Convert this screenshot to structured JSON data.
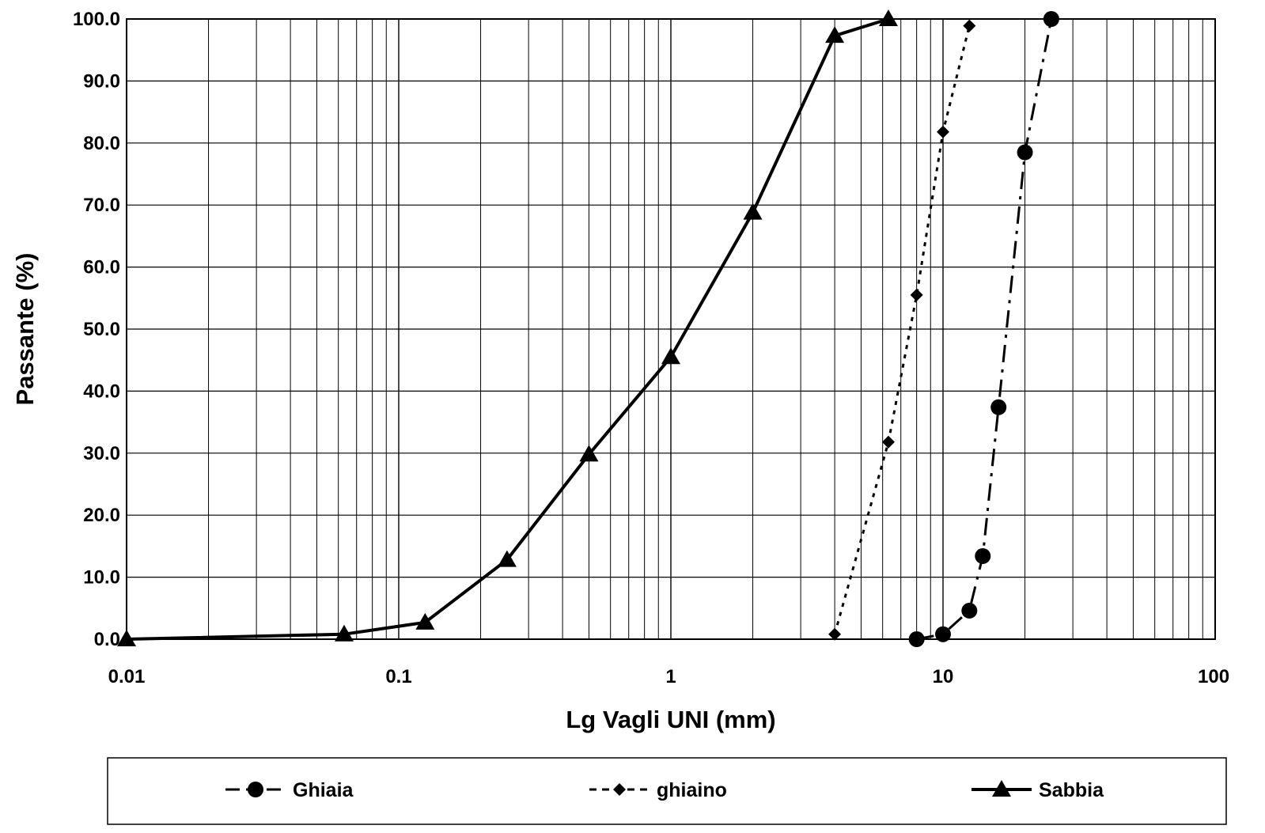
{
  "chart_data": {
    "type": "line",
    "title": "",
    "xlabel": "Lg Vagli UNI (mm)",
    "ylabel": "Passante (%)",
    "x_scale": "log",
    "xlim": [
      0.01,
      100
    ],
    "ylim": [
      0,
      100
    ],
    "x_ticks": [
      0.01,
      0.1,
      1,
      10,
      100
    ],
    "x_tick_labels": [
      "0.01",
      "0.1",
      "1",
      "10",
      "100"
    ],
    "y_ticks": [
      0,
      10,
      20,
      30,
      40,
      50,
      60,
      70,
      80,
      90,
      100
    ],
    "y_tick_labels": [
      "0.0",
      "10.0",
      "20.0",
      "30.0",
      "40.0",
      "50.0",
      "60.0",
      "70.0",
      "80.0",
      "90.0",
      "100.0"
    ],
    "grid": true,
    "legend_position": "bottom",
    "series": [
      {
        "name": "Ghiaia",
        "marker": "circle",
        "line_style": "dash-dot",
        "color": "#000000",
        "x": [
          8,
          10,
          12.5,
          14,
          16,
          20,
          25
        ],
        "y": [
          0.0,
          0.8,
          4.6,
          13.4,
          37.4,
          78.5,
          100.0
        ]
      },
      {
        "name": "ghiaino",
        "marker": "diamond",
        "line_style": "dotted",
        "color": "#000000",
        "x": [
          4,
          6.3,
          8,
          10,
          12.5
        ],
        "y": [
          0.8,
          31.8,
          55.5,
          81.8,
          98.9
        ]
      },
      {
        "name": "Sabbia",
        "marker": "triangle",
        "line_style": "solid",
        "color": "#000000",
        "x": [
          0.01,
          0.063,
          0.125,
          0.25,
          0.5,
          1,
          2,
          4,
          6.3
        ],
        "y": [
          0.0,
          0.8,
          2.7,
          12.8,
          29.8,
          45.5,
          68.8,
          97.3,
          100.0
        ]
      }
    ]
  }
}
